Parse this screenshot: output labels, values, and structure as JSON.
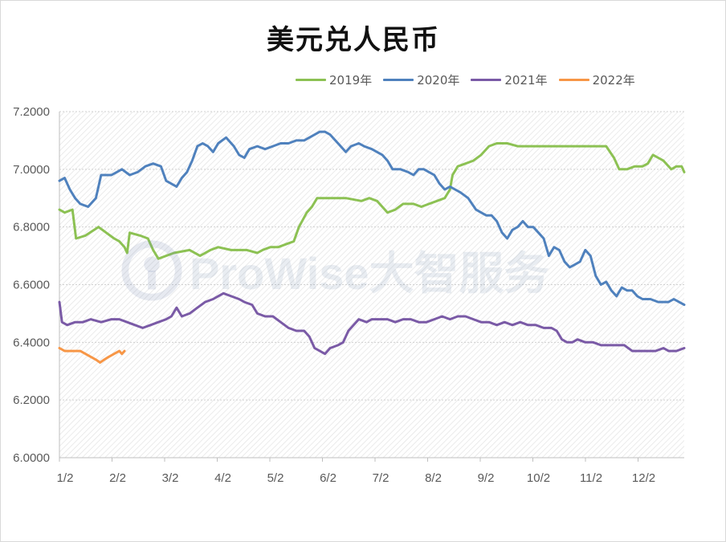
{
  "chart_data": {
    "type": "line",
    "title": "美元兑人民币",
    "watermark": "ProWise大智服务",
    "ylim": [
      6.0,
      7.2
    ],
    "y_ticks": [
      "6.0000",
      "6.2000",
      "6.4000",
      "6.6000",
      "6.8000",
      "7.0000",
      "7.2000"
    ],
    "x_ticks": [
      "1/2",
      "2/2",
      "3/2",
      "4/2",
      "5/2",
      "6/2",
      "7/2",
      "8/2",
      "9/2",
      "10/2",
      "11/2",
      "12/2"
    ],
    "x_unit": "month index (0 = 1/2, 12 = end of year)",
    "xlim": [
      0,
      12
    ],
    "legend_position": "top-right",
    "grid": "horizontal gridlines, hatched plot background",
    "series": [
      {
        "name": "2019年",
        "color": "#8cc153",
        "points": [
          [
            0,
            6.86
          ],
          [
            0.1,
            6.85
          ],
          [
            0.25,
            6.86
          ],
          [
            0.32,
            6.76
          ],
          [
            0.5,
            6.77
          ],
          [
            0.75,
            6.8
          ],
          [
            0.9,
            6.78
          ],
          [
            1.05,
            6.76
          ],
          [
            1.15,
            6.75
          ],
          [
            1.25,
            6.73
          ],
          [
            1.3,
            6.71
          ],
          [
            1.35,
            6.78
          ],
          [
            1.55,
            6.77
          ],
          [
            1.7,
            6.76
          ],
          [
            1.8,
            6.72
          ],
          [
            1.9,
            6.69
          ],
          [
            2.2,
            6.71
          ],
          [
            2.5,
            6.72
          ],
          [
            2.7,
            6.7
          ],
          [
            2.9,
            6.72
          ],
          [
            3.05,
            6.73
          ],
          [
            3.3,
            6.72
          ],
          [
            3.6,
            6.72
          ],
          [
            3.8,
            6.71
          ],
          [
            3.9,
            6.72
          ],
          [
            4.05,
            6.73
          ],
          [
            4.2,
            6.73
          ],
          [
            4.35,
            6.74
          ],
          [
            4.5,
            6.75
          ],
          [
            4.6,
            6.8
          ],
          [
            4.75,
            6.85
          ],
          [
            4.85,
            6.87
          ],
          [
            4.95,
            6.9
          ],
          [
            5.1,
            6.9
          ],
          [
            5.3,
            6.9
          ],
          [
            5.5,
            6.9
          ],
          [
            5.8,
            6.89
          ],
          [
            5.95,
            6.9
          ],
          [
            6.1,
            6.89
          ],
          [
            6.2,
            6.87
          ],
          [
            6.3,
            6.85
          ],
          [
            6.45,
            6.86
          ],
          [
            6.6,
            6.88
          ],
          [
            6.8,
            6.88
          ],
          [
            6.95,
            6.87
          ],
          [
            7.1,
            6.88
          ],
          [
            7.25,
            6.89
          ],
          [
            7.4,
            6.9
          ],
          [
            7.5,
            6.93
          ],
          [
            7.55,
            6.98
          ],
          [
            7.65,
            7.01
          ],
          [
            7.8,
            7.02
          ],
          [
            7.95,
            7.03
          ],
          [
            8.1,
            7.05
          ],
          [
            8.25,
            7.08
          ],
          [
            8.4,
            7.09
          ],
          [
            8.6,
            7.09
          ],
          [
            8.8,
            7.08
          ],
          [
            9.0,
            7.08
          ],
          [
            9.2,
            7.08
          ],
          [
            9.5,
            7.08
          ],
          [
            9.7,
            7.08
          ],
          [
            9.9,
            7.08
          ],
          [
            10.1,
            7.08
          ],
          [
            10.3,
            7.08
          ],
          [
            10.5,
            7.08
          ],
          [
            10.65,
            7.04
          ],
          [
            10.75,
            7.0
          ],
          [
            10.9,
            7.0
          ],
          [
            11.05,
            7.01
          ],
          [
            11.2,
            7.01
          ],
          [
            11.3,
            7.02
          ],
          [
            11.4,
            7.05
          ],
          [
            11.5,
            7.04
          ],
          [
            11.6,
            7.03
          ],
          [
            11.75,
            7.0
          ],
          [
            11.85,
            7.01
          ],
          [
            11.95,
            7.01
          ],
          [
            12.0,
            6.99
          ]
        ]
      },
      {
        "name": "2020年",
        "color": "#4f81bd",
        "points": [
          [
            0,
            6.96
          ],
          [
            0.1,
            6.97
          ],
          [
            0.2,
            6.93
          ],
          [
            0.3,
            6.9
          ],
          [
            0.4,
            6.88
          ],
          [
            0.55,
            6.87
          ],
          [
            0.7,
            6.9
          ],
          [
            0.8,
            6.98
          ],
          [
            1.0,
            6.98
          ],
          [
            1.1,
            6.99
          ],
          [
            1.2,
            7.0
          ],
          [
            1.35,
            6.98
          ],
          [
            1.5,
            6.99
          ],
          [
            1.65,
            7.01
          ],
          [
            1.8,
            7.02
          ],
          [
            1.95,
            7.01
          ],
          [
            2.05,
            6.96
          ],
          [
            2.15,
            6.95
          ],
          [
            2.25,
            6.94
          ],
          [
            2.35,
            6.97
          ],
          [
            2.45,
            6.99
          ],
          [
            2.55,
            7.03
          ],
          [
            2.65,
            7.08
          ],
          [
            2.75,
            7.09
          ],
          [
            2.85,
            7.08
          ],
          [
            2.95,
            7.06
          ],
          [
            3.05,
            7.09
          ],
          [
            3.2,
            7.11
          ],
          [
            3.35,
            7.08
          ],
          [
            3.45,
            7.05
          ],
          [
            3.55,
            7.04
          ],
          [
            3.65,
            7.07
          ],
          [
            3.8,
            7.08
          ],
          [
            3.95,
            7.07
          ],
          [
            4.1,
            7.08
          ],
          [
            4.25,
            7.09
          ],
          [
            4.4,
            7.09
          ],
          [
            4.55,
            7.1
          ],
          [
            4.7,
            7.1
          ],
          [
            4.8,
            7.11
          ],
          [
            4.9,
            7.12
          ],
          [
            5.0,
            7.13
          ],
          [
            5.1,
            7.13
          ],
          [
            5.2,
            7.12
          ],
          [
            5.35,
            7.09
          ],
          [
            5.5,
            7.06
          ],
          [
            5.6,
            7.08
          ],
          [
            5.75,
            7.09
          ],
          [
            5.85,
            7.08
          ],
          [
            6.0,
            7.07
          ],
          [
            6.1,
            7.06
          ],
          [
            6.2,
            7.05
          ],
          [
            6.3,
            7.03
          ],
          [
            6.4,
            7.0
          ],
          [
            6.55,
            7.0
          ],
          [
            6.7,
            6.99
          ],
          [
            6.8,
            6.98
          ],
          [
            6.9,
            7.0
          ],
          [
            7.0,
            7.0
          ],
          [
            7.1,
            6.99
          ],
          [
            7.2,
            6.98
          ],
          [
            7.3,
            6.95
          ],
          [
            7.4,
            6.93
          ],
          [
            7.5,
            6.94
          ],
          [
            7.6,
            6.93
          ],
          [
            7.7,
            6.92
          ],
          [
            7.85,
            6.9
          ],
          [
            8.0,
            6.86
          ],
          [
            8.1,
            6.85
          ],
          [
            8.2,
            6.84
          ],
          [
            8.3,
            6.84
          ],
          [
            8.4,
            6.82
          ],
          [
            8.5,
            6.78
          ],
          [
            8.6,
            6.76
          ],
          [
            8.7,
            6.79
          ],
          [
            8.8,
            6.8
          ],
          [
            8.9,
            6.82
          ],
          [
            9.0,
            6.8
          ],
          [
            9.1,
            6.8
          ],
          [
            9.2,
            6.78
          ],
          [
            9.3,
            6.76
          ],
          [
            9.4,
            6.7
          ],
          [
            9.5,
            6.73
          ],
          [
            9.6,
            6.72
          ],
          [
            9.7,
            6.68
          ],
          [
            9.8,
            6.66
          ],
          [
            9.9,
            6.67
          ],
          [
            10.0,
            6.68
          ],
          [
            10.1,
            6.72
          ],
          [
            10.2,
            6.7
          ],
          [
            10.3,
            6.63
          ],
          [
            10.4,
            6.6
          ],
          [
            10.5,
            6.61
          ],
          [
            10.6,
            6.58
          ],
          [
            10.7,
            6.56
          ],
          [
            10.8,
            6.59
          ],
          [
            10.9,
            6.58
          ],
          [
            11.0,
            6.58
          ],
          [
            11.1,
            6.56
          ],
          [
            11.2,
            6.55
          ],
          [
            11.35,
            6.55
          ],
          [
            11.5,
            6.54
          ],
          [
            11.6,
            6.54
          ],
          [
            11.7,
            6.54
          ],
          [
            11.8,
            6.55
          ],
          [
            11.9,
            6.54
          ],
          [
            12.0,
            6.53
          ]
        ]
      },
      {
        "name": "2021年",
        "color": "#7a5aa6",
        "points": [
          [
            0,
            6.54
          ],
          [
            0.05,
            6.47
          ],
          [
            0.15,
            6.46
          ],
          [
            0.3,
            6.47
          ],
          [
            0.45,
            6.47
          ],
          [
            0.6,
            6.48
          ],
          [
            0.8,
            6.47
          ],
          [
            1.0,
            6.48
          ],
          [
            1.15,
            6.48
          ],
          [
            1.3,
            6.47
          ],
          [
            1.45,
            6.46
          ],
          [
            1.6,
            6.45
          ],
          [
            1.75,
            6.46
          ],
          [
            1.9,
            6.47
          ],
          [
            2.05,
            6.48
          ],
          [
            2.15,
            6.49
          ],
          [
            2.25,
            6.52
          ],
          [
            2.35,
            6.49
          ],
          [
            2.5,
            6.5
          ],
          [
            2.65,
            6.52
          ],
          [
            2.8,
            6.54
          ],
          [
            2.95,
            6.55
          ],
          [
            3.05,
            6.56
          ],
          [
            3.15,
            6.57
          ],
          [
            3.3,
            6.56
          ],
          [
            3.45,
            6.55
          ],
          [
            3.55,
            6.54
          ],
          [
            3.7,
            6.53
          ],
          [
            3.8,
            6.5
          ],
          [
            3.95,
            6.49
          ],
          [
            4.1,
            6.49
          ],
          [
            4.25,
            6.47
          ],
          [
            4.4,
            6.45
          ],
          [
            4.55,
            6.44
          ],
          [
            4.7,
            6.44
          ],
          [
            4.8,
            6.42
          ],
          [
            4.9,
            6.38
          ],
          [
            5.0,
            6.37
          ],
          [
            5.1,
            6.36
          ],
          [
            5.2,
            6.38
          ],
          [
            5.35,
            6.39
          ],
          [
            5.45,
            6.4
          ],
          [
            5.55,
            6.44
          ],
          [
            5.65,
            6.46
          ],
          [
            5.75,
            6.48
          ],
          [
            5.9,
            6.47
          ],
          [
            6.0,
            6.48
          ],
          [
            6.15,
            6.48
          ],
          [
            6.3,
            6.48
          ],
          [
            6.45,
            6.47
          ],
          [
            6.6,
            6.48
          ],
          [
            6.75,
            6.48
          ],
          [
            6.9,
            6.47
          ],
          [
            7.05,
            6.47
          ],
          [
            7.2,
            6.48
          ],
          [
            7.35,
            6.49
          ],
          [
            7.5,
            6.48
          ],
          [
            7.65,
            6.49
          ],
          [
            7.8,
            6.49
          ],
          [
            7.95,
            6.48
          ],
          [
            8.1,
            6.47
          ],
          [
            8.25,
            6.47
          ],
          [
            8.4,
            6.46
          ],
          [
            8.55,
            6.47
          ],
          [
            8.7,
            6.46
          ],
          [
            8.85,
            6.47
          ],
          [
            9.0,
            6.46
          ],
          [
            9.15,
            6.46
          ],
          [
            9.3,
            6.45
          ],
          [
            9.45,
            6.45
          ],
          [
            9.55,
            6.44
          ],
          [
            9.65,
            6.41
          ],
          [
            9.75,
            6.4
          ],
          [
            9.85,
            6.4
          ],
          [
            9.95,
            6.41
          ],
          [
            10.1,
            6.4
          ],
          [
            10.25,
            6.4
          ],
          [
            10.4,
            6.39
          ],
          [
            10.55,
            6.39
          ],
          [
            10.7,
            6.39
          ],
          [
            10.85,
            6.39
          ],
          [
            11.0,
            6.37
          ],
          [
            11.15,
            6.37
          ],
          [
            11.3,
            6.37
          ],
          [
            11.45,
            6.37
          ],
          [
            11.6,
            6.38
          ],
          [
            11.7,
            6.37
          ],
          [
            11.85,
            6.37
          ],
          [
            12.0,
            6.38
          ]
        ]
      },
      {
        "name": "2022年",
        "color": "#f79646",
        "points": [
          [
            0,
            6.38
          ],
          [
            0.1,
            6.37
          ],
          [
            0.2,
            6.37
          ],
          [
            0.3,
            6.37
          ],
          [
            0.4,
            6.37
          ],
          [
            0.5,
            6.36
          ],
          [
            0.6,
            6.35
          ],
          [
            0.7,
            6.34
          ],
          [
            0.78,
            6.33
          ],
          [
            0.86,
            6.34
          ],
          [
            0.95,
            6.35
          ],
          [
            1.05,
            6.36
          ],
          [
            1.15,
            6.37
          ],
          [
            1.2,
            6.36
          ],
          [
            1.25,
            6.37
          ]
        ]
      }
    ]
  }
}
